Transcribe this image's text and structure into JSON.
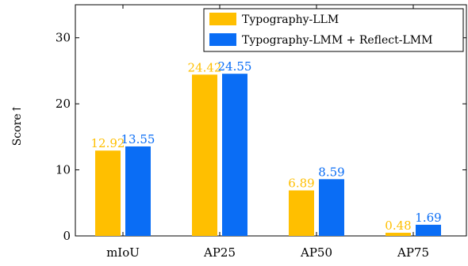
{
  "colors": {
    "series_1": "#FFBF00",
    "series_2": "#0A6DF5",
    "axis": "#000000"
  },
  "chart_data": {
    "type": "bar",
    "categories": [
      "mIoU",
      "AP25",
      "AP50",
      "AP75"
    ],
    "series": [
      {
        "name": "Typography-LLM",
        "values": [
          12.92,
          24.42,
          6.89,
          0.48
        ],
        "labels": [
          "12.92",
          "24.42",
          "6.89",
          "0.48"
        ]
      },
      {
        "name": "Typography-LMM + Reflect-LMM",
        "values": [
          13.55,
          24.55,
          8.59,
          1.69
        ],
        "labels": [
          "13.55",
          "24.55",
          "8.59",
          "1.69"
        ]
      }
    ],
    "title": "",
    "xlabel": "",
    "ylabel": "Score↑",
    "ylim": [
      0,
      35
    ],
    "yticks": [
      0,
      10,
      20,
      30
    ],
    "grid": false,
    "legend_position": "top-right"
  }
}
